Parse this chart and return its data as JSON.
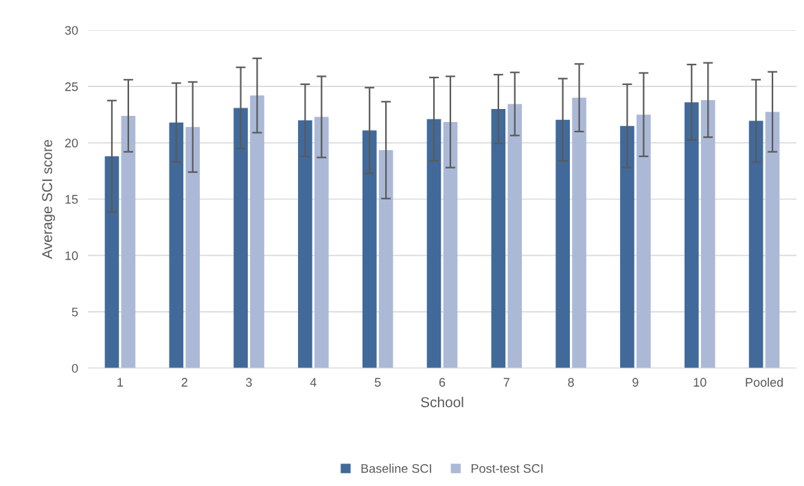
{
  "chart_data": {
    "type": "bar",
    "xlabel": "School",
    "ylabel": "Average SCI score",
    "categories": [
      "1",
      "2",
      "3",
      "4",
      "5",
      "6",
      "7",
      "8",
      "9",
      "10",
      "Pooled"
    ],
    "series": [
      {
        "name": "Baseline SCI",
        "color": "#416a9b",
        "values": [
          18.8,
          21.8,
          23.1,
          22.0,
          21.1,
          22.1,
          23.0,
          22.05,
          21.5,
          23.6,
          21.95
        ],
        "errors": [
          4.95,
          3.5,
          3.6,
          3.2,
          3.8,
          3.7,
          3.05,
          3.65,
          3.7,
          3.35,
          3.65
        ]
      },
      {
        "name": "Post-test SCI",
        "color": "#abb9d6",
        "values": [
          22.4,
          21.4,
          24.2,
          22.3,
          19.35,
          21.85,
          23.45,
          24.0,
          22.5,
          23.8,
          22.75
        ],
        "errors": [
          3.2,
          4.0,
          3.3,
          3.6,
          4.3,
          4.05,
          2.8,
          3.0,
          3.7,
          3.3,
          3.55
        ]
      }
    ],
    "ylim": [
      0,
      30
    ],
    "yticks": [
      0,
      5,
      10,
      15,
      20,
      25,
      30
    ],
    "grid": "y",
    "legend": "bottom"
  }
}
